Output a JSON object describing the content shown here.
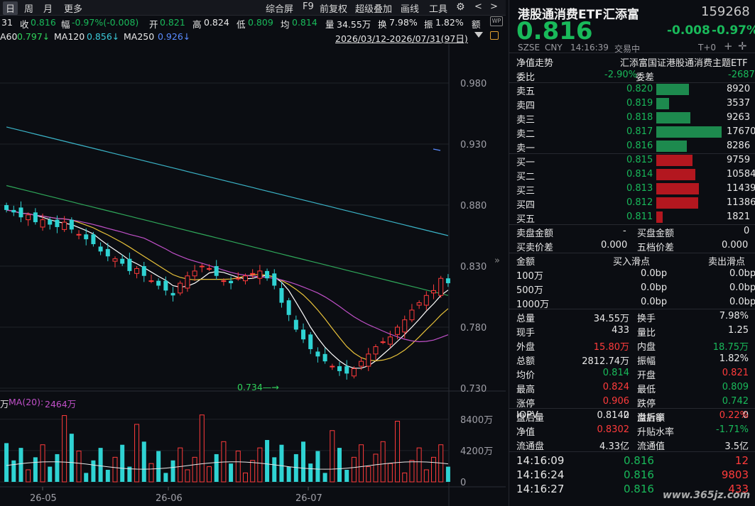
{
  "toolbar": {
    "period_day": "日",
    "period_week": "周",
    "period_month": "月",
    "more": "更多",
    "composite": "综合屏",
    "f9": "F9",
    "adjust": "前复权",
    "overlay": "超级叠加",
    "draw": "画线",
    "tools": "工具"
  },
  "infobar": {
    "open_tail": "31",
    "close_label": "收",
    "close": "0.816",
    "chg_label": "幅",
    "chg": "-0.97%(-0.008)",
    "open_label": "开",
    "open": "0.821",
    "high_label": "高",
    "high": "0.824",
    "low_label": "低",
    "low": "0.809",
    "avg_label": "均",
    "avg": "0.814",
    "vol_label": "量",
    "vol": "34.55万",
    "turn_label": "换",
    "turn": "7.98%",
    "amp_label": "振",
    "amp": "1.82%",
    "amt_label": "额",
    "ma60_label": "A60",
    "ma60": "0.797↓",
    "ma120_label": "MA120",
    "ma120": "0.856↓",
    "ma250_label": "MA250",
    "ma250": "0.926↓",
    "range": "2026/03/12-2026/07/31(97日)"
  },
  "chart": {
    "y_ticks": [
      "0.980",
      "0.930",
      "0.880",
      "0.830",
      "0.780",
      "0.730"
    ],
    "low_marker": "0.734",
    "vol_label_tail": "万",
    "vol_ma_label": "MA(20):",
    "vol_ma_value": "2464万",
    "vol_ticks": [
      "8400万",
      "4200万",
      "0"
    ],
    "x_ticks": [
      "26-05",
      "26-06",
      "26-07"
    ],
    "colors": {
      "up": "#ff3b3b",
      "down": "#2fd3d3",
      "ma5": "#ffffff",
      "ma10": "#e8c23a",
      "ma20": "#c050c8",
      "ma60": "#2fa85a",
      "ma120": "#3bb4c8",
      "ma250": "#5a8cff"
    }
  },
  "quote": {
    "name": "港股通消费ETF汇添富",
    "code": "159268",
    "price": "0.816",
    "change": "-0.008",
    "change_pct": "-0.97%",
    "market": "SZSE",
    "currency": "CNY",
    "time": "14:16:39",
    "status": "交易中",
    "tplus": "T+0",
    "nav_trend": "净值走势",
    "fund_name": "汇添富国证港股通消费主题ETF",
    "wb_label": "委比",
    "wb": "-2.90%",
    "wc_label": "委差",
    "wc": "-2687"
  },
  "order_book": {
    "sells": [
      {
        "label": "卖五",
        "price": "0.820",
        "vol": "8920",
        "ratio": 0.505
      },
      {
        "label": "卖四",
        "price": "0.819",
        "vol": "3537",
        "ratio": 0.2
      },
      {
        "label": "卖三",
        "price": "0.818",
        "vol": "9263",
        "ratio": 0.524
      },
      {
        "label": "卖二",
        "price": "0.817",
        "vol": "17670",
        "ratio": 1.0
      },
      {
        "label": "卖一",
        "price": "0.816",
        "vol": "8286",
        "ratio": 0.469
      }
    ],
    "buys": [
      {
        "label": "买一",
        "price": "0.815",
        "vol": "9759",
        "ratio": 0.552
      },
      {
        "label": "买二",
        "price": "0.814",
        "vol": "10584",
        "ratio": 0.599
      },
      {
        "label": "买三",
        "price": "0.813",
        "vol": "11439",
        "ratio": 0.647
      },
      {
        "label": "买四",
        "price": "0.812",
        "vol": "11386",
        "ratio": 0.644
      },
      {
        "label": "买五",
        "price": "0.811",
        "vol": "1821",
        "ratio": 0.103
      }
    ]
  },
  "auction": {
    "sell_amt_label": "卖盘金额",
    "sell_amt": "-",
    "buy_amt_label": "买盘金额",
    "buy_amt": "0",
    "bs_diff_label": "买卖价差",
    "bs_diff": "0.000",
    "five_diff_label": "五档价差",
    "five_diff": "0.000"
  },
  "slippage": {
    "h_amount": "金额",
    "h_buy": "买入滑点",
    "h_sell": "卖出滑点",
    "rows": [
      {
        "amount": "100万",
        "buy": "0.0bp",
        "sell": "0.0bp"
      },
      {
        "amount": "500万",
        "buy": "0.0bp",
        "sell": "0.0bp"
      },
      {
        "amount": "1000万",
        "buy": "0.0bp",
        "sell": "0.0bp"
      }
    ]
  },
  "stats": [
    {
      "l1": "总量",
      "v1": "34.55万",
      "c1": "white",
      "l2": "换手",
      "v2": "7.98%",
      "c2": "white"
    },
    {
      "l1": "现手",
      "v1": "433",
      "c1": "white",
      "l2": "量比",
      "v2": "1.25",
      "c2": "white"
    },
    {
      "l1": "外盘",
      "v1": "15.80万",
      "c1": "up",
      "l2": "内盘",
      "v2": "18.75万",
      "c2": "down"
    },
    {
      "l1": "总额",
      "v1": "2812.74万",
      "c1": "white",
      "l2": "振幅",
      "v2": "1.82%",
      "c2": "white"
    },
    {
      "l1": "均价",
      "v1": "0.814",
      "c1": "down",
      "l2": "开盘",
      "v2": "0.821",
      "c2": "up"
    },
    {
      "l1": "最高",
      "v1": "0.824",
      "c1": "up",
      "l2": "最低",
      "v2": "0.809",
      "c2": "down"
    },
    {
      "l1": "涨停",
      "v1": "0.906",
      "c1": "up",
      "l2": "跌停",
      "v2": "0.742",
      "c2": "down"
    },
    {
      "l1": "盘后量",
      "v1": "0",
      "c1": "white",
      "l2": "盘后额",
      "v2": "0",
      "c2": "white"
    }
  ],
  "fund": [
    {
      "l1": "IOPV",
      "v1": "0.8142",
      "c1": "white",
      "l2": "溢折率",
      "v2": "0.22%",
      "c2": "up"
    },
    {
      "l1": "净值",
      "v1": "0.8302",
      "c1": "up",
      "l2": "升贴水率",
      "v2": "-1.71%",
      "c2": "down"
    },
    {
      "l1": "流通盘",
      "v1": "4.33亿",
      "c1": "white",
      "l2": "流通值",
      "v2": "3.5亿",
      "c2": "white"
    }
  ],
  "ticks": [
    {
      "time": "14:16:09",
      "price": "0.816",
      "vol": "12"
    },
    {
      "time": "14:16:24",
      "price": "0.816",
      "vol": "9803"
    },
    {
      "time": "14:16:27",
      "price": "0.816",
      "vol": "433"
    }
  ],
  "watermark": "www.365jz.com"
}
